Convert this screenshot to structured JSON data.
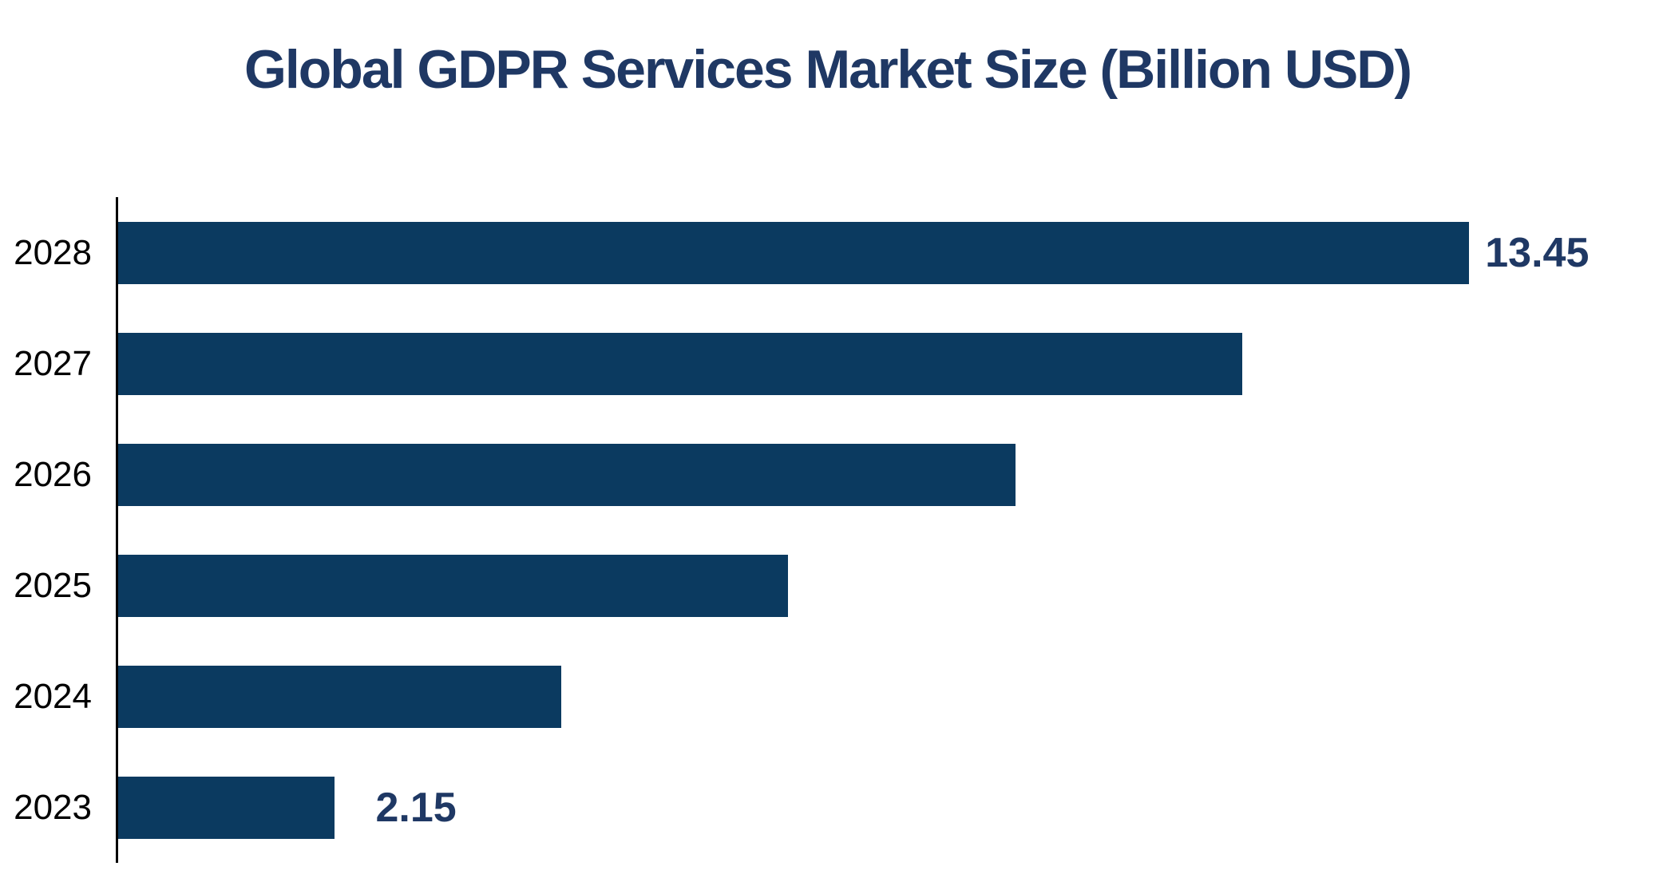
{
  "page": {
    "background_color": "#ffffff"
  },
  "chart_data": {
    "type": "bar",
    "orientation": "horizontal",
    "title": "Global GDPR Services Market Size (Billion USD)",
    "categories": [
      "2028",
      "2027",
      "2026",
      "2025",
      "2024",
      "2023"
    ],
    "values": [
      13.45,
      11.19,
      8.93,
      6.67,
      4.41,
      2.15
    ],
    "data_labels": [
      "13.45",
      "",
      "",
      "",
      "",
      "2.15"
    ],
    "xlabel": "",
    "ylabel": "",
    "xlim": [
      0,
      15.3
    ],
    "grid": false,
    "legend": false,
    "bar_color": "#0B3A60",
    "title_color": "#1F3864",
    "data_label_color": "#1F3864",
    "category_label_color": "#000000",
    "axis_color": "#000000"
  }
}
